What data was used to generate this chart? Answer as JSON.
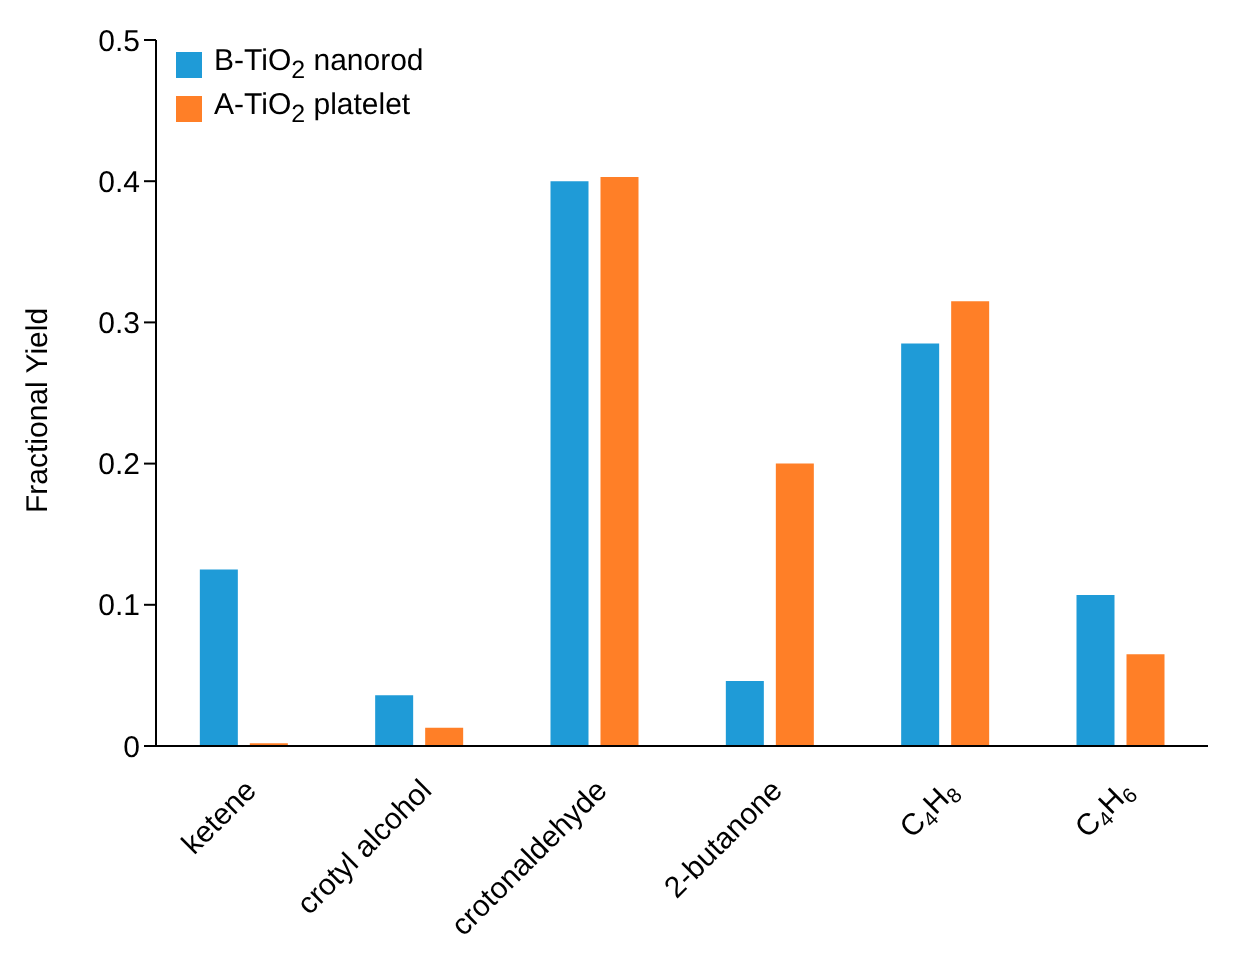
{
  "chart_data": {
    "type": "bar",
    "ylabel": "Fractional Yield",
    "categories": [
      "ketene",
      "crotyl alcohol",
      "crotonaldehyde",
      "2-butanone",
      "C$_{4}$H$_{8}$",
      "C$_{4}$H$_{6}$"
    ],
    "series": [
      {
        "name": "B-TiO$_{2}$ nanorod",
        "color": "#1f9bd7",
        "values": [
          0.125,
          0.036,
          0.4,
          0.046,
          0.285,
          0.107
        ]
      },
      {
        "name": "A-TiO$_{2}$ platelet",
        "color": "#ff7f27",
        "values": [
          0.002,
          0.013,
          0.403,
          0.2,
          0.315,
          0.065
        ]
      }
    ],
    "ylim": [
      0,
      0.5
    ],
    "yticks": [
      0,
      0.1,
      0.2,
      0.3,
      0.4,
      0.5
    ],
    "grid": false,
    "legend": "top left"
  }
}
